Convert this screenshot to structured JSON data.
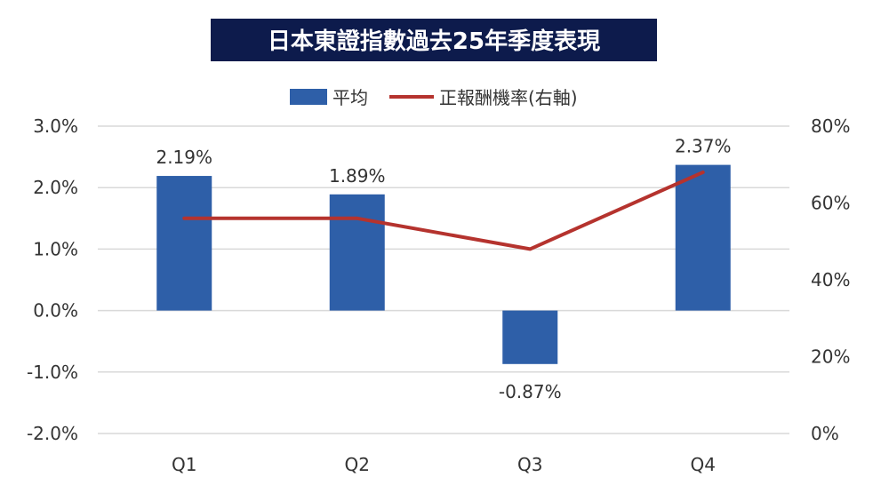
{
  "chart_data": {
    "type": "bar",
    "title": "日本東證指數過去25年季度表現",
    "categories": [
      "Q1",
      "Q2",
      "Q3",
      "Q4"
    ],
    "series": [
      {
        "name": "平均",
        "type": "bar",
        "axis": "left",
        "color": "#2e5fa8",
        "values": [
          2.19,
          1.89,
          -0.87,
          2.37
        ],
        "labels": [
          "2.19%",
          "1.89%",
          "-0.87%",
          "2.37%"
        ]
      },
      {
        "name": "正報酬機率(右軸)",
        "type": "line",
        "axis": "right",
        "color": "#b5332e",
        "values": [
          56,
          56,
          48,
          68
        ]
      }
    ],
    "y_left": {
      "min": -2,
      "max": 3,
      "step": 1,
      "tick_labels": [
        "-2.0%",
        "-1.0%",
        "0.0%",
        "1.0%",
        "2.0%",
        "3.0%"
      ]
    },
    "y_right": {
      "min": 0,
      "max": 80,
      "step": 20,
      "tick_labels": [
        "0%",
        "20%",
        "40%",
        "60%",
        "80%"
      ]
    },
    "grid": true,
    "legend_position": "top-center",
    "title_background": "#0d1b4c"
  }
}
